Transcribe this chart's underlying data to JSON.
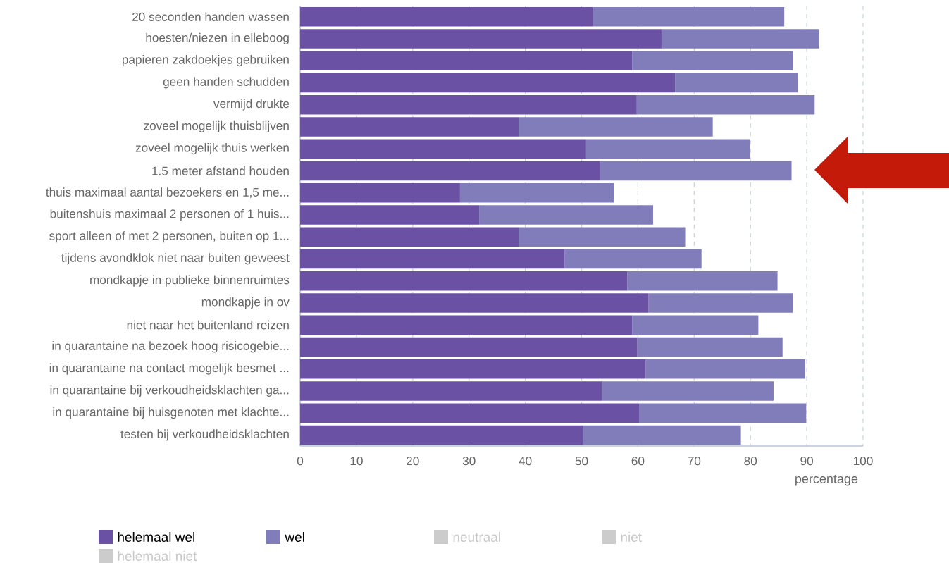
{
  "chart_data": {
    "type": "bar",
    "orientation": "horizontal",
    "stacked": true,
    "xlabel": "percentage",
    "categories": [
      "20 seconden handen wassen",
      "hoesten/niezen in elleboog",
      "papieren zakdoekjes gebruiken",
      "geen handen schudden",
      "vermijd drukte",
      "zoveel mogelijk thuisblijven",
      "zoveel mogelijk thuis werken",
      "1.5 meter afstand houden",
      "thuis maximaal aantal bezoekers en 1,5 me...",
      "buitenshuis maximaal 2 personen of 1 huis...",
      "sport alleen of met 2 personen, buiten op 1...",
      "tijdens avondklok niet naar buiten geweest",
      "mondkapje in publieke binnenruimtes",
      "mondkapje in ov",
      "niet naar het buitenland reizen",
      "in quarantaine na bezoek hoog risicogebie...",
      "in quarantaine na contact mogelijk besmet ...",
      "in quarantaine bij verkoudheidsklachten ga...",
      "in quarantaine bij huisgenoten met klachte...",
      "testen bij verkoudheidsklachten"
    ],
    "series": [
      {
        "name": "helemaal wel",
        "color": "#6a51a3",
        "values": [
          52.0,
          64.2,
          59.0,
          66.6,
          59.8,
          38.8,
          50.8,
          53.2,
          28.4,
          31.8,
          38.8,
          47.0,
          58.1,
          61.9,
          59.0,
          59.9,
          61.4,
          53.6,
          60.2,
          50.2
        ]
      },
      {
        "name": "wel",
        "color": "#807dba",
        "values": [
          34.0,
          28.0,
          28.5,
          21.8,
          31.6,
          34.5,
          29.1,
          34.1,
          27.3,
          30.9,
          29.6,
          24.3,
          26.7,
          25.6,
          22.4,
          25.8,
          28.3,
          30.5,
          29.7,
          28.1
        ]
      },
      {
        "name": "neutraal",
        "color": "#cccccc",
        "values": [
          null,
          null,
          null,
          null,
          null,
          null,
          null,
          null,
          null,
          null,
          null,
          null,
          null,
          null,
          null,
          null,
          null,
          null,
          null,
          null
        ]
      },
      {
        "name": "niet",
        "color": "#cccccc",
        "values": [
          null,
          null,
          null,
          null,
          null,
          null,
          null,
          null,
          null,
          null,
          null,
          null,
          null,
          null,
          null,
          null,
          null,
          null,
          null,
          null
        ]
      },
      {
        "name": "helemaal niet",
        "color": "#cccccc",
        "values": [
          null,
          null,
          null,
          null,
          null,
          null,
          null,
          null,
          null,
          null,
          null,
          null,
          null,
          null,
          null,
          null,
          null,
          null,
          null,
          null
        ]
      }
    ],
    "xlim": [
      0,
      100
    ],
    "xticks": [
      0,
      10,
      20,
      30,
      40,
      50,
      60,
      70,
      80,
      90,
      100
    ],
    "grid": "x",
    "legend": "bottom"
  }
}
